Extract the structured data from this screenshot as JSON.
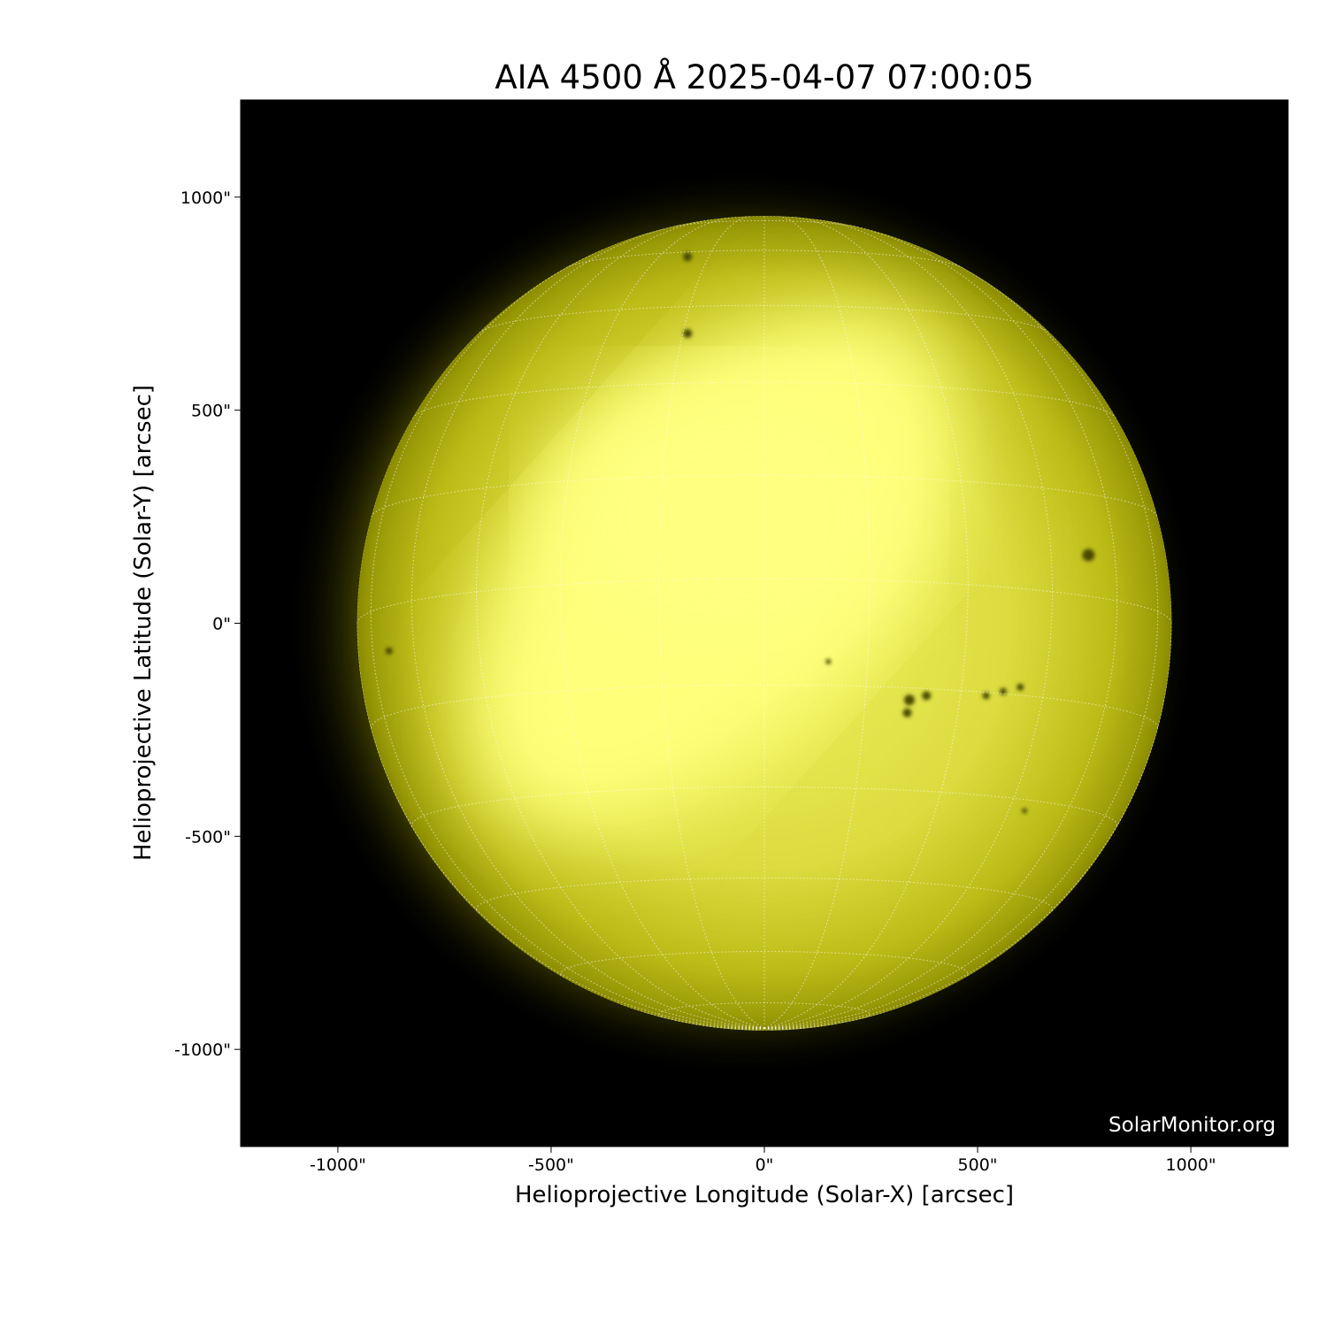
{
  "chart_data": {
    "type": "image",
    "title": "AIA 4500 Å 2025-04-07 07:00:05",
    "xlabel": "Helioprojective Longitude (Solar-X) [arcsec]",
    "ylabel": "Helioprojective Latitude (Solar-Y) [arcsec]",
    "xlim": [
      -1228,
      1228
    ],
    "ylim": [
      -1228,
      1228
    ],
    "xticks": [
      -1000,
      -500,
      0,
      500,
      1000
    ],
    "xtick_labels": [
      "-1000\"",
      "-500\"",
      "0\"",
      "500\"",
      "1000\""
    ],
    "yticks": [
      1000,
      500,
      0,
      -500,
      -1000
    ],
    "ytick_labels": [
      "1000\"",
      "500\"",
      "0\"",
      "-500\"",
      "-1000\""
    ],
    "solar_radius_arcsec": 955,
    "grid": "heliographic, 15° spacing, dotted",
    "colormap": "yellow (sdoaia4500)",
    "background": "#000000",
    "watermark": "SolarMonitor.org"
  }
}
